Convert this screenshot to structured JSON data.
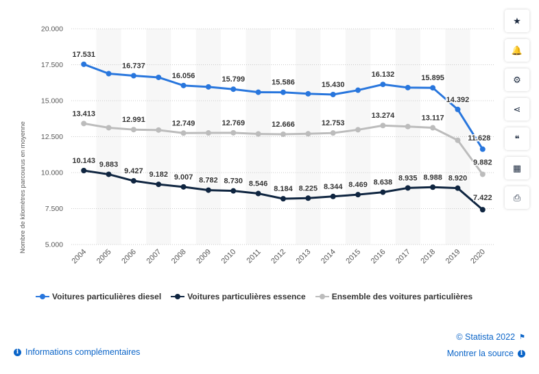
{
  "chart_data": {
    "type": "line",
    "title": "",
    "xlabel": "",
    "ylabel": "Nombre de kilomètres parcourus en moyenne",
    "ylim": [
      5000,
      20000
    ],
    "yticks": [
      5000,
      7500,
      10000,
      12500,
      15000,
      17500,
      20000
    ],
    "ytick_labels": [
      "5.000",
      "7.500",
      "10.000",
      "12.500",
      "15.000",
      "17.500",
      "20.000"
    ],
    "grid": true,
    "legend_position": "bottom-left",
    "categories": [
      "2004",
      "2005",
      "2006",
      "2007",
      "2008",
      "2009",
      "2010",
      "2011",
      "2012",
      "2013",
      "2014",
      "2015",
      "2016",
      "2017",
      "2018",
      "2019",
      "2020"
    ],
    "series": [
      {
        "name": "Voitures particulières diesel",
        "color": "#2876dd",
        "values": [
          17531,
          16880,
          16737,
          16620,
          16056,
          15960,
          15799,
          15590,
          15586,
          15480,
          15430,
          15730,
          16132,
          15910,
          15895,
          14392,
          11628
        ],
        "labels": [
          "17.531",
          "",
          "16.737",
          "",
          "16.056",
          "",
          "15.799",
          "",
          "15.586",
          "",
          "15.430",
          "",
          "16.132",
          "",
          "15.895",
          "14.392",
          "11.628"
        ]
      },
      {
        "name": "Voitures particulières essence",
        "color": "#0f2540",
        "values": [
          10143,
          9883,
          9427,
          9182,
          9007,
          8782,
          8730,
          8546,
          8184,
          8225,
          8344,
          8469,
          8638,
          8935,
          8988,
          8920,
          7422
        ],
        "labels": [
          "10.143",
          "9.883",
          "9.427",
          "9.182",
          "9.007",
          "8.782",
          "8.730",
          "8.546",
          "8.184",
          "8.225",
          "8.344",
          "8.469",
          "8.638",
          "8.935",
          "8.988",
          "8.920",
          "7.422"
        ]
      },
      {
        "name": "Ensemble des voitures particulières",
        "color": "#bcbcbc",
        "values": [
          13413,
          13120,
          12991,
          12960,
          12749,
          12760,
          12769,
          12690,
          12666,
          12700,
          12753,
          12980,
          13274,
          13200,
          13117,
          12250,
          9882
        ],
        "labels": [
          "13.413",
          "",
          "12.991",
          "",
          "12.749",
          "",
          "12.769",
          "",
          "12.666",
          "",
          "12.753",
          "",
          "13.274",
          "",
          "13.117",
          "",
          "9.882"
        ]
      }
    ]
  },
  "toolbar": {
    "buttons": [
      {
        "name": "favorite-button",
        "icon": "star-icon",
        "glyph": "★"
      },
      {
        "name": "notification-button",
        "icon": "bell-icon",
        "glyph": "🔔"
      },
      {
        "name": "settings-button",
        "icon": "gear-icon",
        "glyph": "⚙"
      },
      {
        "name": "share-button",
        "icon": "share-icon",
        "glyph": "⋖"
      },
      {
        "name": "cite-button",
        "icon": "quote-icon",
        "glyph": "❝"
      },
      {
        "name": "language-button",
        "icon": "uk-flag-icon",
        "glyph": "▦"
      },
      {
        "name": "print-button",
        "icon": "printer-icon",
        "glyph": "⎙"
      }
    ]
  },
  "footer": {
    "info_label": "Informations complémentaires",
    "copyright": "© Statista 2022",
    "source_label": "Montrer la source"
  }
}
